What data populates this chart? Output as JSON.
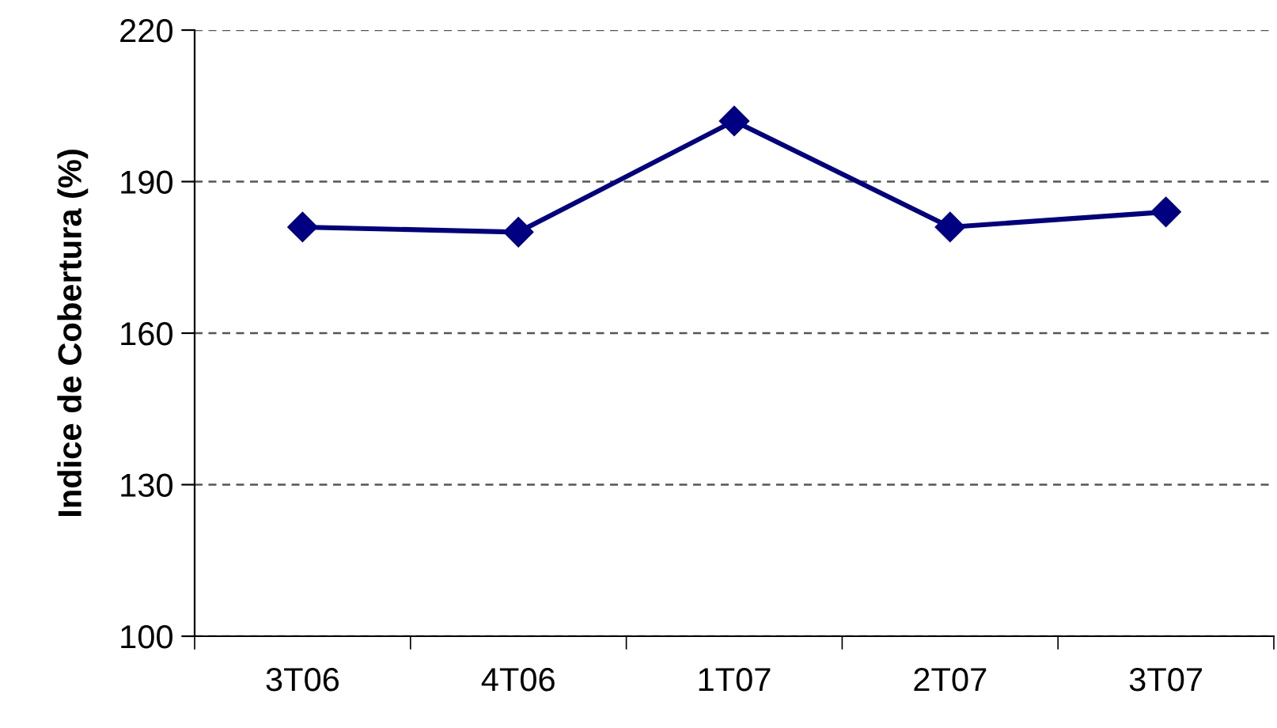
{
  "chart_data": {
    "type": "line",
    "ylabel": "Indice de Cobertura (%)",
    "categories": [
      "3T06",
      "4T06",
      "1T07",
      "2T07",
      "3T07"
    ],
    "series": [
      {
        "color": "#000080",
        "values": [
          181,
          180,
          202,
          181,
          184
        ]
      }
    ],
    "ylim": [
      100,
      220
    ],
    "yticks": [
      100,
      130,
      160,
      190,
      220
    ],
    "grid": "y",
    "marker": "diamond",
    "line_style": "solid",
    "legend": false
  }
}
